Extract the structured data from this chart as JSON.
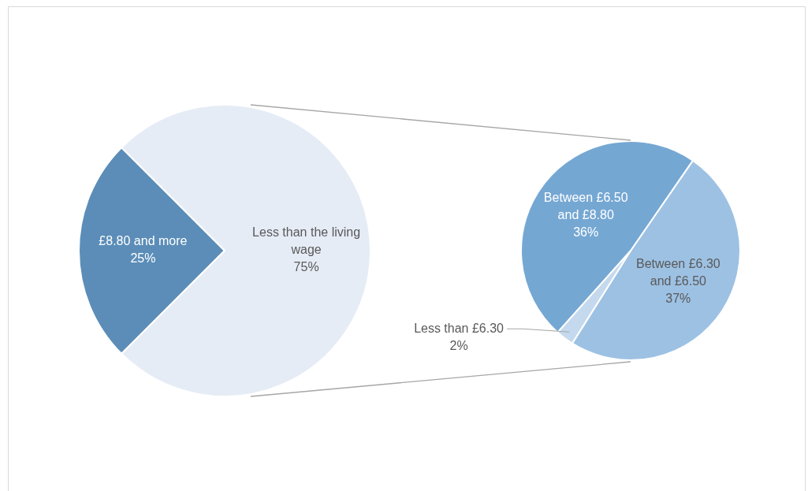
{
  "chart_data": [
    {
      "type": "pie",
      "categories": [
        "£8.80 and more",
        "Less than the living wage"
      ],
      "values": [
        25,
        75
      ],
      "value_labels": [
        "25%",
        "75%"
      ],
      "colors": [
        "#5b8db8",
        "#e6ecf6"
      ]
    },
    {
      "type": "pie",
      "categories": [
        "Between £6.30 and £6.50",
        "Less than £6.30",
        "Between £6.50 and £8.80"
      ],
      "values": [
        37,
        2,
        36
      ],
      "value_labels": [
        "37%",
        "2%",
        "36%"
      ],
      "colors": [
        "#9dc1e3",
        "#c5d9ee",
        "#75a7d3"
      ]
    }
  ]
}
